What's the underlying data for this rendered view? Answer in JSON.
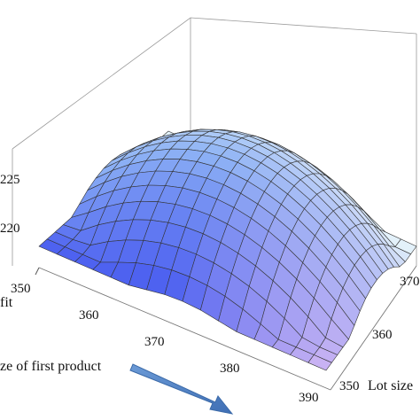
{
  "chart_data": {
    "type": "surface3d",
    "title": "",
    "x_axis": {
      "label": "ze of first product",
      "ticks": [
        "350",
        "360",
        "370",
        "380",
        "390"
      ],
      "range": [
        350,
        390
      ]
    },
    "y_axis": {
      "label": "Lot size",
      "ticks": [
        "350",
        "360",
        "370"
      ],
      "range": [
        350,
        390
      ]
    },
    "z_axis": {
      "label": "fit",
      "ticks": [
        "220",
        "225"
      ]
    },
    "surface": {
      "shape": "concave-down paraboloid",
      "x_grid": [
        350,
        352.5,
        355,
        357.5,
        360,
        362.5,
        365,
        367.5,
        370,
        372.5,
        375,
        377.5,
        380,
        382.5,
        385,
        387.5,
        390
      ],
      "y_grid": [
        350,
        352.5,
        355,
        357.5,
        360,
        362.5,
        365,
        367.5,
        370,
        372.5,
        375,
        377.5,
        380,
        382.5,
        385,
        387.5,
        390
      ],
      "peak": {
        "x": 370,
        "y": 372
      },
      "color_low": "#4a5cf0",
      "color_mid": "#8fb4f5",
      "color_high": "#e9f6fa",
      "color_corner": "#e6c6f4",
      "mesh_color": "#333333"
    },
    "annotation": {
      "type": "arrow",
      "direction": "down-right",
      "color": "#4f81bd"
    },
    "grid": false,
    "box": true
  }
}
